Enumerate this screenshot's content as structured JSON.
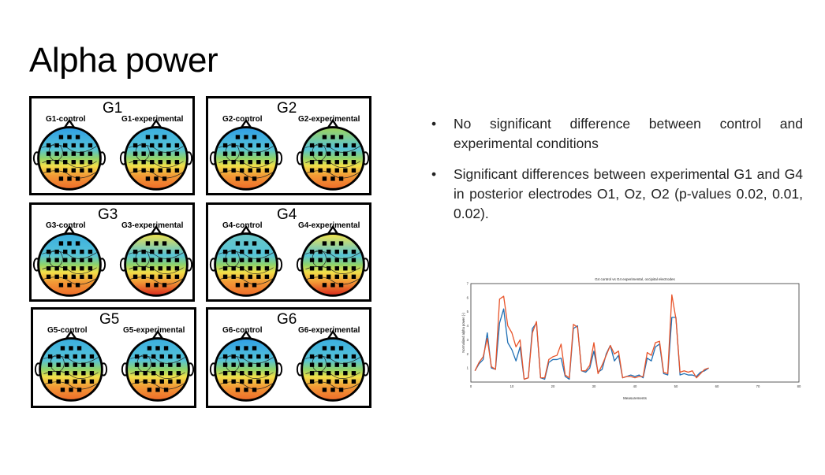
{
  "slide": {
    "title": "Alpha power"
  },
  "panels": [
    {
      "group": "G1",
      "control_label": "G1-control",
      "experimental_label": "G1-experimental"
    },
    {
      "group": "G2",
      "control_label": "G2-control",
      "experimental_label": "G2-experimental"
    },
    {
      "group": "G3",
      "control_label": "G3-control",
      "experimental_label": "G3-experimental"
    },
    {
      "group": "G4",
      "control_label": "G4-control",
      "experimental_label": "G4-experimental"
    },
    {
      "group": "G5",
      "control_label": "G5-control",
      "experimental_label": "G5-experimental"
    },
    {
      "group": "G6",
      "control_label": "G6-control",
      "experimental_label": "G6-experimental"
    }
  ],
  "bullets": [
    {
      "symbol": "•",
      "text": "No significant difference between control and experimental conditions"
    },
    {
      "symbol": "•",
      "text": "Significant differences between experimental G1 and G4 in posterior electrodes O1, Oz, O2 (p-values 0.02, 0.01, 0.02)."
    }
  ],
  "colors": {
    "series_blue": "#1f6fb4",
    "series_orange": "#e8542a"
  },
  "chart_data": {
    "type": "line",
    "title": "G4 control vs G4 experimental, occipital electrodes",
    "xlabel": "Measurements",
    "ylabel": "Normalized alpha power (-)",
    "xlim": [
      0,
      80
    ],
    "ylim": [
      0,
      7
    ],
    "xticks": [
      0,
      10,
      20,
      30,
      40,
      50,
      60,
      70,
      80
    ],
    "yticks": [
      1,
      2,
      3,
      4,
      5,
      6,
      7
    ],
    "x": [
      1,
      2,
      3,
      4,
      5,
      6,
      7,
      8,
      9,
      10,
      11,
      12,
      13,
      14,
      15,
      16,
      17,
      18,
      19,
      20,
      21,
      22,
      23,
      24,
      25,
      26,
      27,
      28,
      29,
      30,
      31,
      32,
      33,
      34,
      35,
      36,
      37,
      38,
      39,
      40,
      41,
      42,
      43,
      44,
      45,
      46,
      47,
      48,
      49,
      50,
      51,
      52,
      53,
      54,
      55,
      56,
      57,
      58
    ],
    "series": [
      {
        "values": [
          0.8,
          1.3,
          1.6,
          3.5,
          1.0,
          0.9,
          4.2,
          5.2,
          2.8,
          2.3,
          1.5,
          2.5,
          0.2,
          0.3,
          3.8,
          4.2,
          0.3,
          0.2,
          1.4,
          1.6,
          1.6,
          1.7,
          0.4,
          0.2,
          3.8,
          4.0,
          0.8,
          0.7,
          1.0,
          2.2,
          0.7,
          0.9,
          2.0,
          2.6,
          1.5,
          1.9,
          0.3,
          0.4,
          0.5,
          0.4,
          0.5,
          0.3,
          1.7,
          1.5,
          2.5,
          2.7,
          0.6,
          0.5,
          4.6,
          4.6,
          0.5,
          0.6,
          0.5,
          0.5,
          0.4,
          0.7,
          0.8,
          1.0
        ]
      },
      {
        "values": [
          0.8,
          1.4,
          1.8,
          3.1,
          1.1,
          0.9,
          5.9,
          6.1,
          4.0,
          3.5,
          2.5,
          3.0,
          0.2,
          0.3,
          3.5,
          4.3,
          0.3,
          0.3,
          1.6,
          1.8,
          1.9,
          2.7,
          0.5,
          0.3,
          4.1,
          3.9,
          0.8,
          0.8,
          1.2,
          2.8,
          0.6,
          1.2,
          1.9,
          2.6,
          2.0,
          2.2,
          0.3,
          0.4,
          0.4,
          0.3,
          0.4,
          0.4,
          2.1,
          1.9,
          2.8,
          2.9,
          0.7,
          0.6,
          6.2,
          4.5,
          0.7,
          0.8,
          0.7,
          0.8,
          0.3,
          0.6,
          0.9,
          1.0
        ]
      }
    ]
  }
}
